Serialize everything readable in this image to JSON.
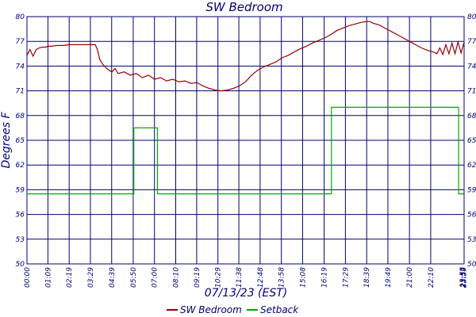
{
  "chart_data": {
    "type": "line",
    "title": "SW Bedroom",
    "xlabel": "07/13/23 (EST)",
    "ylabel": "Degrees F",
    "ylim": [
      50,
      80
    ],
    "yticks": [
      "50",
      "53",
      "56",
      "59",
      "62",
      "65",
      "68",
      "71",
      "74",
      "77",
      "80"
    ],
    "xlim": [
      0,
      1440
    ],
    "xticks": [
      {
        "t": 0,
        "label": "00:00"
      },
      {
        "t": 69,
        "label": "01:09"
      },
      {
        "t": 139,
        "label": "02:19"
      },
      {
        "t": 209,
        "label": "03:29"
      },
      {
        "t": 279,
        "label": "04:39"
      },
      {
        "t": 350,
        "label": "05:50"
      },
      {
        "t": 420,
        "label": "07:00"
      },
      {
        "t": 490,
        "label": "08:10"
      },
      {
        "t": 559,
        "label": "09:19"
      },
      {
        "t": 629,
        "label": "10:29"
      },
      {
        "t": 698,
        "label": "11:38"
      },
      {
        "t": 768,
        "label": "12:48"
      },
      {
        "t": 838,
        "label": "13:58"
      },
      {
        "t": 908,
        "label": "15:08"
      },
      {
        "t": 979,
        "label": "16:19"
      },
      {
        "t": 1049,
        "label": "17:29"
      },
      {
        "t": 1119,
        "label": "18:39"
      },
      {
        "t": 1189,
        "label": "19:49"
      },
      {
        "t": 1260,
        "label": "21:00"
      },
      {
        "t": 1330,
        "label": "22:10"
      },
      {
        "t": 1435,
        "label": "23:55"
      },
      {
        "t": 1437,
        "label": "23:57"
      },
      {
        "t": 1439,
        "label": "23:59"
      }
    ],
    "grid": true,
    "legend": "bottom",
    "series": [
      {
        "name": "SW Bedroom",
        "color": "#990000",
        "x": [
          0,
          10,
          20,
          30,
          40,
          50,
          60,
          70,
          80,
          100,
          120,
          140,
          160,
          180,
          200,
          225,
          232,
          240,
          250,
          260,
          270,
          280,
          290,
          300,
          320,
          340,
          360,
          380,
          400,
          420,
          440,
          460,
          480,
          500,
          520,
          540,
          560,
          580,
          600,
          620,
          640,
          660,
          680,
          700,
          720,
          740,
          760,
          780,
          800,
          820,
          840,
          860,
          880,
          900,
          920,
          940,
          960,
          980,
          1000,
          1020,
          1040,
          1060,
          1080,
          1100,
          1120,
          1130,
          1140,
          1160,
          1180,
          1200,
          1220,
          1240,
          1260,
          1280,
          1300,
          1320,
          1340,
          1350,
          1360,
          1370,
          1380,
          1390,
          1400,
          1410,
          1420,
          1430,
          1439
        ],
        "values": [
          75.3,
          76.0,
          75.2,
          76.0,
          76.2,
          76.3,
          76.3,
          76.4,
          76.4,
          76.5,
          76.5,
          76.6,
          76.6,
          76.6,
          76.6,
          76.6,
          76.0,
          74.8,
          74.2,
          73.8,
          73.5,
          73.3,
          73.7,
          73.1,
          73.3,
          72.9,
          73.1,
          72.6,
          72.9,
          72.4,
          72.6,
          72.2,
          72.4,
          72.1,
          72.2,
          71.9,
          72.0,
          71.6,
          71.3,
          71.1,
          71.0,
          71.1,
          71.3,
          71.6,
          72.1,
          72.9,
          73.5,
          73.9,
          74.2,
          74.5,
          75.0,
          75.3,
          75.7,
          76.1,
          76.4,
          76.8,
          77.1,
          77.4,
          77.8,
          78.3,
          78.6,
          78.9,
          79.1,
          79.3,
          79.4,
          79.4,
          79.2,
          79.0,
          78.6,
          78.2,
          77.8,
          77.4,
          77.0,
          76.6,
          76.2,
          75.9,
          75.7,
          75.5,
          76.2,
          75.4,
          76.6,
          75.5,
          76.8,
          75.5,
          76.9,
          75.6,
          76.8
        ]
      },
      {
        "name": "Setback",
        "color": "#00aa00",
        "step": true,
        "x": [
          0,
          350,
          352,
          428,
          430,
          1001,
          1003,
          1420,
          1422,
          1439
        ],
        "values": [
          58.5,
          58.5,
          66.5,
          66.5,
          58.5,
          58.5,
          69.0,
          69.0,
          58.5,
          58.5
        ]
      }
    ]
  }
}
